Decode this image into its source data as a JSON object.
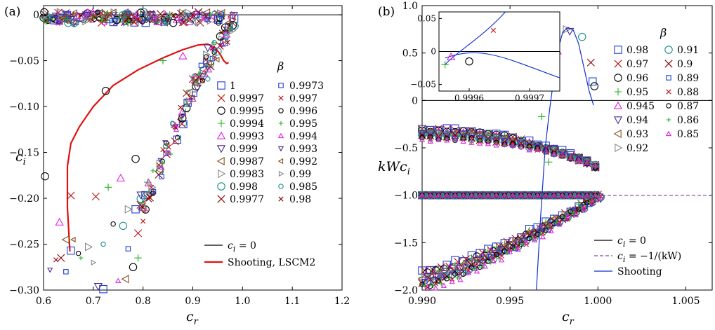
{
  "chart_data": [
    {
      "panel_label": "(a)",
      "type": "scatter",
      "xlabel": "c_r",
      "ylabel": "c_i",
      "xlim": [
        0.6,
        1.2
      ],
      "ylim": [
        -0.3,
        0.01
      ],
      "xticks": [
        "0.6",
        "0.7",
        "0.8",
        "0.9",
        "1.0",
        "1.1",
        "1.2"
      ],
      "yticks": [
        "0",
        "−0.05",
        "−0.10",
        "−0.15",
        "−0.20",
        "−0.25",
        "−0.30"
      ],
      "legend_title": "β",
      "legend_placement": "right",
      "legend_beta": [
        "1",
        "0.9997",
        "0.9995",
        "0.9994",
        "0.9993",
        "0.999",
        "0.9987",
        "0.9983",
        "0.998",
        "0.9977",
        "0.9973",
        "0.997",
        "0.996",
        "0.995",
        "0.994",
        "0.993",
        "0.992",
        "0.99",
        "0.985",
        "0.98"
      ],
      "lines": [
        {
          "name": "c_i = 0",
          "color": "#000000",
          "points": [
            [
              0.6,
              0
            ],
            [
              1.2,
              0
            ]
          ]
        },
        {
          "name": "Shooting, LSCM2",
          "color": "#e01010",
          "points": [
            [
              0.653,
              -0.258
            ],
            [
              0.648,
              -0.21
            ],
            [
              0.648,
              -0.165
            ],
            [
              0.655,
              -0.14
            ],
            [
              0.672,
              -0.122
            ],
            [
              0.7,
              -0.1
            ],
            [
              0.74,
              -0.077
            ],
            [
              0.79,
              -0.06
            ],
            [
              0.84,
              -0.047
            ],
            [
              0.88,
              -0.038
            ],
            [
              0.91,
              -0.033
            ],
            [
              0.93,
              -0.032
            ],
            [
              0.945,
              -0.036
            ],
            [
              0.955,
              -0.043
            ],
            [
              0.962,
              -0.05
            ],
            [
              0.968,
              -0.053
            ],
            [
              0.972,
              -0.052
            ]
          ]
        }
      ],
      "points": [
        {
          "s": 0,
          "x": 0.72,
          "y": -0.299
        },
        {
          "s": 0,
          "x": 0.785,
          "y": -0.212
        },
        {
          "s": 0,
          "x": 0.655,
          "y": -0.257
        },
        {
          "s": 1,
          "x": 0.655,
          "y": -0.197
        },
        {
          "s": 1,
          "x": 0.705,
          "y": -0.198
        },
        {
          "s": 1,
          "x": 0.79,
          "y": -0.238
        },
        {
          "s": 2,
          "x": 0.603,
          "y": -0.176
        },
        {
          "s": 2,
          "x": 0.725,
          "y": -0.083
        },
        {
          "s": 2,
          "x": 0.785,
          "y": -0.157
        },
        {
          "s": 2,
          "x": 0.78,
          "y": -0.275
        },
        {
          "s": 3,
          "x": 0.73,
          "y": -0.188
        },
        {
          "s": 3,
          "x": 0.79,
          "y": -0.265
        },
        {
          "s": 3,
          "x": 0.84,
          "y": -0.05
        },
        {
          "s": 4,
          "x": 0.632,
          "y": -0.226
        },
        {
          "s": 4,
          "x": 0.755,
          "y": -0.178
        },
        {
          "s": 4,
          "x": 0.88,
          "y": -0.045
        },
        {
          "s": 5,
          "x": 0.71,
          "y": -0.296
        },
        {
          "s": 5,
          "x": 0.93,
          "y": -0.036
        },
        {
          "s": 6,
          "x": 0.645,
          "y": -0.245
        },
        {
          "s": 6,
          "x": 0.765,
          "y": -0.288
        },
        {
          "s": 7,
          "x": 0.69,
          "y": -0.253
        },
        {
          "s": 7,
          "x": 0.77,
          "y": -0.212
        },
        {
          "s": 8,
          "x": 0.76,
          "y": -0.23
        },
        {
          "s": 8,
          "x": 0.95,
          "y": -0.04
        },
        {
          "s": 9,
          "x": 0.635,
          "y": -0.265
        },
        {
          "s": 9,
          "x": 0.81,
          "y": -0.2
        },
        {
          "s": 10,
          "x": 0.645,
          "y": -0.28
        },
        {
          "s": 10,
          "x": 0.77,
          "y": -0.255
        },
        {
          "s": 11,
          "x": 0.8,
          "y": -0.225
        },
        {
          "s": 11,
          "x": 0.84,
          "y": -0.147
        },
        {
          "s": 12,
          "x": 0.67,
          "y": -0.26
        },
        {
          "s": 12,
          "x": 0.74,
          "y": -0.228
        },
        {
          "s": 13,
          "x": 0.675,
          "y": -0.265
        },
        {
          "s": 13,
          "x": 0.82,
          "y": -0.17
        },
        {
          "s": 14,
          "x": 0.75,
          "y": -0.29
        },
        {
          "s": 14,
          "x": 0.865,
          "y": -0.12
        },
        {
          "s": 15,
          "x": 0.613,
          "y": -0.278
        },
        {
          "s": 15,
          "x": 0.88,
          "y": -0.11
        },
        {
          "s": 16,
          "x": 0.66,
          "y": -0.245
        },
        {
          "s": 16,
          "x": 0.9,
          "y": -0.09
        },
        {
          "s": 17,
          "x": 0.7,
          "y": -0.27
        },
        {
          "s": 17,
          "x": 0.91,
          "y": -0.075
        },
        {
          "s": 18,
          "x": 0.72,
          "y": -0.25
        },
        {
          "s": 18,
          "x": 0.93,
          "y": -0.07
        },
        {
          "s": 19,
          "x": 0.625,
          "y": -0.267
        },
        {
          "s": 19,
          "x": 0.97,
          "y": -0.03
        }
      ]
    },
    {
      "panel_label": "(b)",
      "type": "scatter",
      "xlabel": "c_r",
      "ylabel": "kWc_i",
      "xlim": [
        0.99,
        1.0065
      ],
      "ylim": [
        -2.0,
        1.0
      ],
      "xticks": [
        "0.990",
        "0.995",
        "1.000",
        "1.005"
      ],
      "yticks": [
        "1.0",
        "0.5",
        "0",
        "−0.5",
        "−1.0",
        "−1.5",
        "−2.0"
      ],
      "legend_title": "β",
      "legend_placement": "top-right",
      "legend_beta": [
        "0.98",
        "0.97",
        "0.96",
        "0.95",
        "0.945",
        "0.94",
        "0.93",
        "0.92",
        "0.91",
        "0.9",
        "0.89",
        "0.88",
        "0.87",
        "0.86",
        "0.85"
      ],
      "lines": [
        {
          "name": "c_i = 0",
          "color": "#000000",
          "style": "solid"
        },
        {
          "name": "c_i = −1/(kW)",
          "color": "#8040a0",
          "style": "dashed"
        },
        {
          "name": "Shooting",
          "color": "#1030d0",
          "style": "solid",
          "points": [
            [
              0.9965,
              -2.0
            ],
            [
              0.99675,
              -1.2
            ],
            [
              0.997,
              -0.5
            ],
            [
              0.99725,
              -0.1
            ],
            [
              0.9975,
              0.25
            ],
            [
              0.99775,
              0.55
            ],
            [
              0.998,
              0.72
            ],
            [
              0.9983,
              0.77
            ],
            [
              0.9986,
              0.74
            ],
            [
              0.9989,
              0.6
            ],
            [
              0.9992,
              0.35
            ],
            [
              0.9995,
              0.1
            ],
            [
              0.99975,
              -0.05
            ]
          ]
        }
      ],
      "inset": {
        "xlim": [
          0.99955,
          0.99975
        ],
        "ylim": [
          -0.06,
          0.06
        ],
        "xticks": [
          "0.9996",
          "0.9997"
        ],
        "yticks": [
          "0.05",
          "0",
          "−0.05"
        ]
      }
    }
  ],
  "legend_labels": {
    "ci_zero": "c",
    "ci_zero_sub": "i",
    "ci_zero_rest": " = 0",
    "shooting_a": "Shooting, LSCM2",
    "ci_kw": "c",
    "ci_kw_sub": "i",
    "ci_kw_rest": " = −1/(kW)",
    "shooting_b": "Shooting"
  },
  "colors": {
    "blue": "#1f3fd8",
    "red": "#c01010",
    "black": "#000000",
    "green": "#22b022",
    "magenta": "#e020e0",
    "purple": "#4a2a8a",
    "brown": "#8a5020",
    "gray": "#888888",
    "teal": "#17908a",
    "darkred": "#8b0000"
  }
}
